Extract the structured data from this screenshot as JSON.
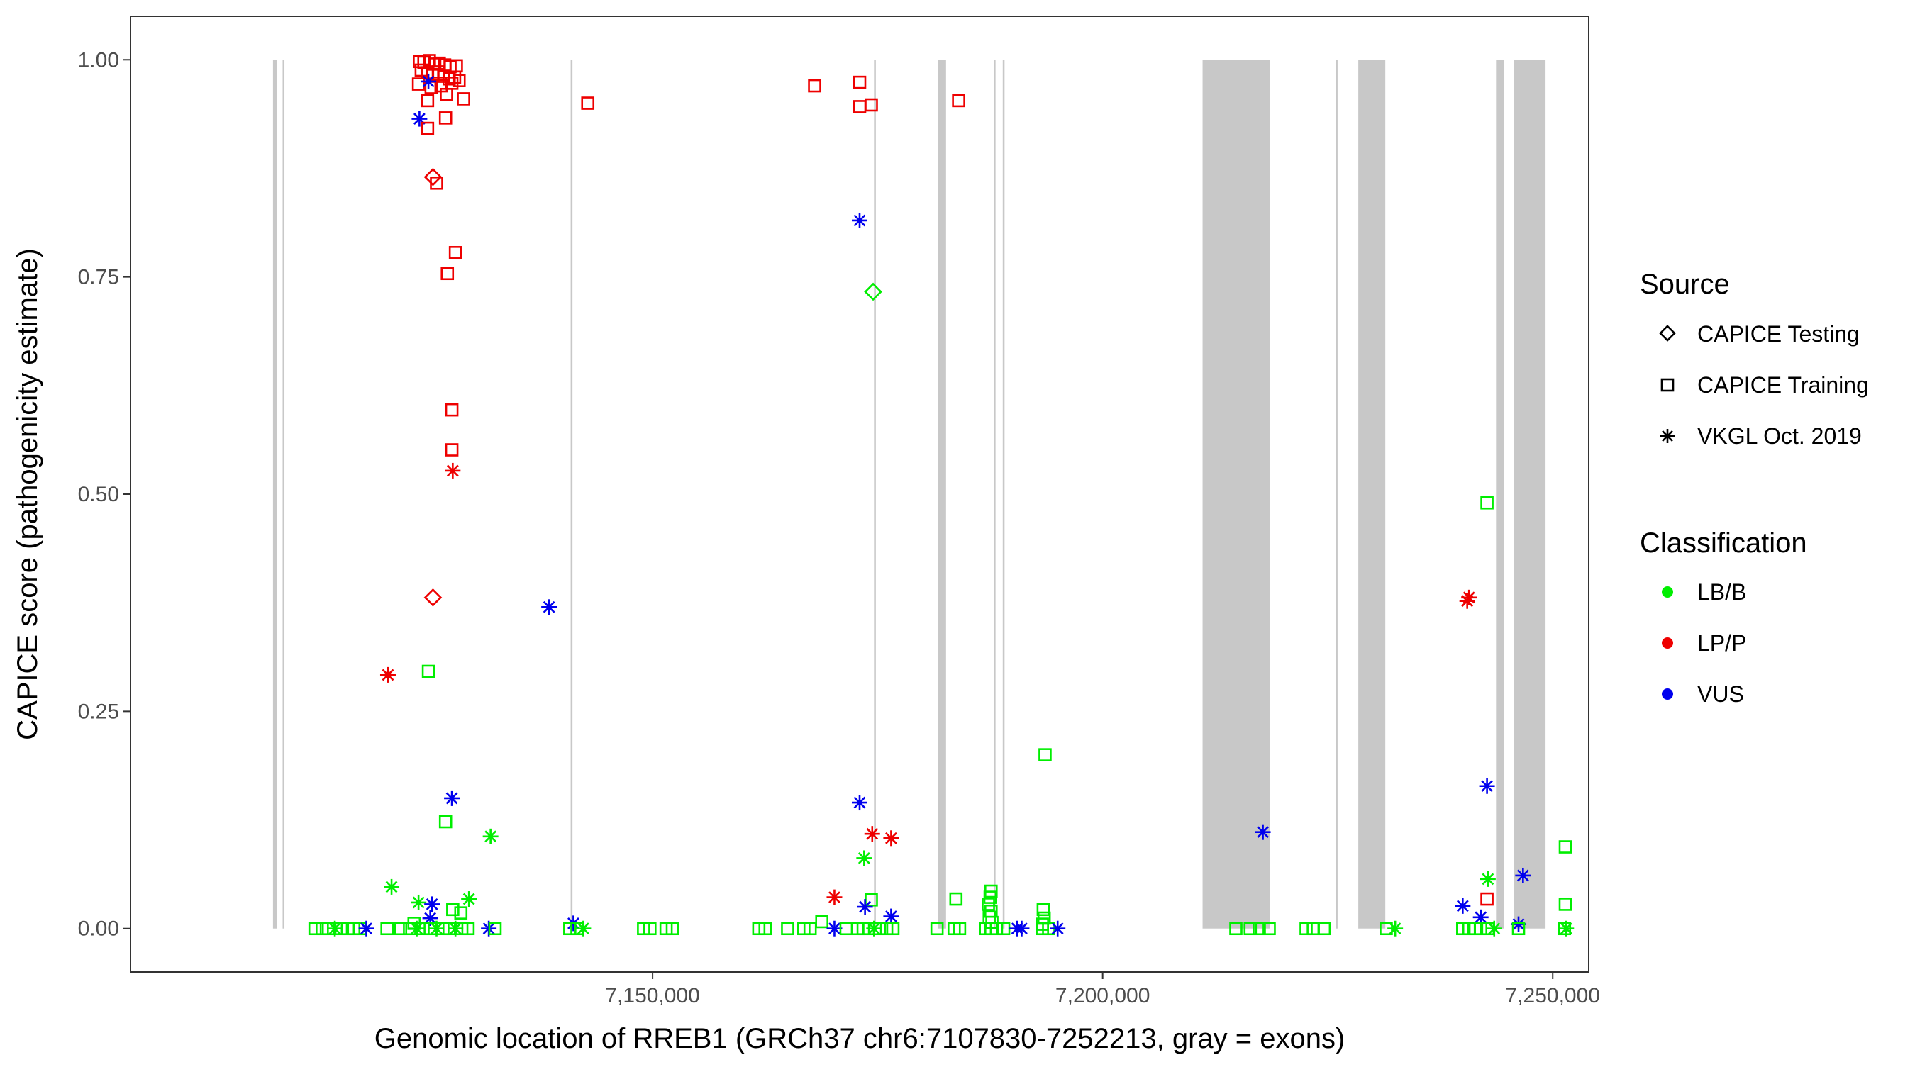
{
  "chart_data": {
    "type": "scatter",
    "xlabel": "Genomic location of RREB1 (GRCh37 chr6:7107830-7252213, gray = exons)",
    "ylabel": "CAPICE score (pathogenicity estimate)",
    "xlim": [
      7092000,
      7254000
    ],
    "ylim": [
      -0.05,
      1.05
    ],
    "x_ticks": [
      7150000,
      7200000,
      7250000
    ],
    "x_tick_labels": [
      "7,150,000",
      "7,200,000",
      "7,250,000"
    ],
    "y_ticks": [
      0,
      0.25,
      0.5,
      0.75,
      1.0
    ],
    "y_tick_labels": [
      "0.00",
      "0.25",
      "0.50",
      "0.75",
      "1.00"
    ],
    "grid": false,
    "legend_placement": "right",
    "exons": [
      [
        7107830,
        7108300
      ],
      [
        7108900,
        7109100
      ],
      [
        7140900,
        7141100
      ],
      [
        7174600,
        7174800
      ],
      [
        7181700,
        7182600
      ],
      [
        7187900,
        7188100
      ],
      [
        7188900,
        7189100
      ],
      [
        7211100,
        7218600
      ],
      [
        7225900,
        7226100
      ],
      [
        7228400,
        7231400
      ],
      [
        7243700,
        7244600
      ],
      [
        7245700,
        7249200
      ]
    ],
    "legend": {
      "source_title": "Source",
      "source_entries": [
        {
          "label": "CAPICE Testing",
          "shape": "diamond"
        },
        {
          "label": "CAPICE Training",
          "shape": "square"
        },
        {
          "label": "VKGL Oct. 2019",
          "shape": "asterisk"
        }
      ],
      "class_title": "Classification",
      "class_entries": [
        {
          "label": "LB/B",
          "color": "#00ee00"
        },
        {
          "label": "LP/P",
          "color": "#ee0000"
        },
        {
          "label": "VUS",
          "color": "#0000ee"
        }
      ]
    },
    "colors": {
      "LB/B": "#00ee00",
      "LP/P": "#ee0000",
      "VUS": "#0000ee",
      "exon": "#c8c8c8"
    },
    "points": [
      {
        "x": 7124100,
        "y": 0.998,
        "shape": "square",
        "class": "LP/P"
      },
      {
        "x": 7124600,
        "y": 0.997,
        "shape": "square",
        "class": "LP/P"
      },
      {
        "x": 7125200,
        "y": 0.999,
        "shape": "square",
        "class": "LP/P"
      },
      {
        "x": 7125800,
        "y": 0.995,
        "shape": "square",
        "class": "LP/P"
      },
      {
        "x": 7126300,
        "y": 0.996,
        "shape": "square",
        "class": "LP/P"
      },
      {
        "x": 7126900,
        "y": 0.994,
        "shape": "square",
        "class": "LP/P"
      },
      {
        "x": 7127500,
        "y": 0.992,
        "shape": "square",
        "class": "LP/P"
      },
      {
        "x": 7128200,
        "y": 0.993,
        "shape": "square",
        "class": "LP/P"
      },
      {
        "x": 7124300,
        "y": 0.988,
        "shape": "square",
        "class": "LP/P"
      },
      {
        "x": 7125000,
        "y": 0.985,
        "shape": "square",
        "class": "LP/P"
      },
      {
        "x": 7125600,
        "y": 0.983,
        "shape": "square",
        "class": "LP/P"
      },
      {
        "x": 7126200,
        "y": 0.986,
        "shape": "square",
        "class": "LP/P"
      },
      {
        "x": 7126800,
        "y": 0.981,
        "shape": "square",
        "class": "LP/P"
      },
      {
        "x": 7127400,
        "y": 0.978,
        "shape": "square",
        "class": "LP/P"
      },
      {
        "x": 7128000,
        "y": 0.98,
        "shape": "square",
        "class": "LP/P"
      },
      {
        "x": 7128500,
        "y": 0.976,
        "shape": "square",
        "class": "LP/P"
      },
      {
        "x": 7124000,
        "y": 0.972,
        "shape": "square",
        "class": "LP/P"
      },
      {
        "x": 7125400,
        "y": 0.968,
        "shape": "square",
        "class": "LP/P"
      },
      {
        "x": 7126500,
        "y": 0.97,
        "shape": "square",
        "class": "LP/P"
      },
      {
        "x": 7127700,
        "y": 0.973,
        "shape": "square",
        "class": "LP/P"
      },
      {
        "x": 7125100,
        "y": 0.975,
        "shape": "asterisk",
        "class": "VUS"
      },
      {
        "x": 7125000,
        "y": 0.953,
        "shape": "square",
        "class": "LP/P"
      },
      {
        "x": 7127100,
        "y": 0.96,
        "shape": "square",
        "class": "LP/P"
      },
      {
        "x": 7129000,
        "y": 0.955,
        "shape": "square",
        "class": "LP/P"
      },
      {
        "x": 7124100,
        "y": 0.932,
        "shape": "asterisk",
        "class": "VUS"
      },
      {
        "x": 7127000,
        "y": 0.933,
        "shape": "square",
        "class": "LP/P"
      },
      {
        "x": 7125000,
        "y": 0.921,
        "shape": "square",
        "class": "LP/P"
      },
      {
        "x": 7125600,
        "y": 0.865,
        "shape": "diamond",
        "class": "LP/P"
      },
      {
        "x": 7126000,
        "y": 0.858,
        "shape": "square",
        "class": "LP/P"
      },
      {
        "x": 7128100,
        "y": 0.778,
        "shape": "square",
        "class": "LP/P"
      },
      {
        "x": 7127200,
        "y": 0.754,
        "shape": "square",
        "class": "LP/P"
      },
      {
        "x": 7127700,
        "y": 0.597,
        "shape": "square",
        "class": "LP/P"
      },
      {
        "x": 7127700,
        "y": 0.551,
        "shape": "square",
        "class": "LP/P"
      },
      {
        "x": 7127800,
        "y": 0.527,
        "shape": "asterisk",
        "class": "LP/P"
      },
      {
        "x": 7125600,
        "y": 0.381,
        "shape": "diamond",
        "class": "LP/P"
      },
      {
        "x": 7138500,
        "y": 0.37,
        "shape": "asterisk",
        "class": "VUS"
      },
      {
        "x": 7120600,
        "y": 0.292,
        "shape": "asterisk",
        "class": "LP/P"
      },
      {
        "x": 7125100,
        "y": 0.296,
        "shape": "square",
        "class": "LB/B"
      },
      {
        "x": 7127700,
        "y": 0.15,
        "shape": "asterisk",
        "class": "VUS"
      },
      {
        "x": 7127000,
        "y": 0.123,
        "shape": "square",
        "class": "LB/B"
      },
      {
        "x": 7132000,
        "y": 0.106,
        "shape": "asterisk",
        "class": "LB/B"
      },
      {
        "x": 7121000,
        "y": 0.048,
        "shape": "asterisk",
        "class": "LB/B"
      },
      {
        "x": 7129600,
        "y": 0.034,
        "shape": "asterisk",
        "class": "LB/B"
      },
      {
        "x": 7124000,
        "y": 0.03,
        "shape": "asterisk",
        "class": "LB/B"
      },
      {
        "x": 7125500,
        "y": 0.028,
        "shape": "asterisk",
        "class": "VUS"
      },
      {
        "x": 7127800,
        "y": 0.022,
        "shape": "square",
        "class": "LB/B"
      },
      {
        "x": 7128700,
        "y": 0.018,
        "shape": "square",
        "class": "LB/B"
      },
      {
        "x": 7125300,
        "y": 0.012,
        "shape": "asterisk",
        "class": "VUS"
      },
      {
        "x": 7123500,
        "y": 0.006,
        "shape": "square",
        "class": "LB/B"
      },
      {
        "x": 7142800,
        "y": 0.95,
        "shape": "square",
        "class": "LP/P"
      },
      {
        "x": 7141200,
        "y": 0.006,
        "shape": "asterisk",
        "class": "VUS"
      },
      {
        "x": 7168000,
        "y": 0.97,
        "shape": "square",
        "class": "LP/P"
      },
      {
        "x": 7173000,
        "y": 0.974,
        "shape": "square",
        "class": "LP/P"
      },
      {
        "x": 7173000,
        "y": 0.946,
        "shape": "square",
        "class": "LP/P"
      },
      {
        "x": 7174300,
        "y": 0.948,
        "shape": "square",
        "class": "LP/P"
      },
      {
        "x": 7173000,
        "y": 0.815,
        "shape": "asterisk",
        "class": "VUS"
      },
      {
        "x": 7174500,
        "y": 0.733,
        "shape": "diamond",
        "class": "LB/B"
      },
      {
        "x": 7173000,
        "y": 0.145,
        "shape": "asterisk",
        "class": "VUS"
      },
      {
        "x": 7174400,
        "y": 0.109,
        "shape": "asterisk",
        "class": "LP/P"
      },
      {
        "x": 7176500,
        "y": 0.104,
        "shape": "asterisk",
        "class": "LP/P"
      },
      {
        "x": 7173500,
        "y": 0.081,
        "shape": "asterisk",
        "class": "LB/B"
      },
      {
        "x": 7170200,
        "y": 0.036,
        "shape": "asterisk",
        "class": "LP/P"
      },
      {
        "x": 7174300,
        "y": 0.033,
        "shape": "square",
        "class": "LB/B"
      },
      {
        "x": 7173600,
        "y": 0.025,
        "shape": "asterisk",
        "class": "VUS"
      },
      {
        "x": 7176500,
        "y": 0.014,
        "shape": "asterisk",
        "class": "VUS"
      },
      {
        "x": 7168800,
        "y": 0.008,
        "shape": "square",
        "class": "LB/B"
      },
      {
        "x": 7184000,
        "y": 0.953,
        "shape": "square",
        "class": "LP/P"
      },
      {
        "x": 7183700,
        "y": 0.034,
        "shape": "square",
        "class": "LB/B"
      },
      {
        "x": 7187600,
        "y": 0.043,
        "shape": "square",
        "class": "LB/B"
      },
      {
        "x": 7187500,
        "y": 0.036,
        "shape": "square",
        "class": "LB/B"
      },
      {
        "x": 7187300,
        "y": 0.028,
        "shape": "square",
        "class": "LB/B"
      },
      {
        "x": 7187600,
        "y": 0.02,
        "shape": "square",
        "class": "LB/B"
      },
      {
        "x": 7187400,
        "y": 0.013,
        "shape": "square",
        "class": "LB/B"
      },
      {
        "x": 7187700,
        "y": 0.007,
        "shape": "square",
        "class": "LB/B"
      },
      {
        "x": 7193600,
        "y": 0.2,
        "shape": "square",
        "class": "LB/B"
      },
      {
        "x": 7193400,
        "y": 0.022,
        "shape": "square",
        "class": "LB/B"
      },
      {
        "x": 7193500,
        "y": 0.012,
        "shape": "square",
        "class": "LB/B"
      },
      {
        "x": 7193300,
        "y": 0.005,
        "shape": "square",
        "class": "LB/B"
      },
      {
        "x": 7217800,
        "y": 0.111,
        "shape": "asterisk",
        "class": "VUS"
      },
      {
        "x": 7240500,
        "y": 0.377,
        "shape": "asterisk",
        "class": "LP/P"
      },
      {
        "x": 7240700,
        "y": 0.381,
        "shape": "asterisk",
        "class": "LP/P"
      },
      {
        "x": 7242700,
        "y": 0.49,
        "shape": "square",
        "class": "LB/B"
      },
      {
        "x": 7242700,
        "y": 0.164,
        "shape": "asterisk",
        "class": "VUS"
      },
      {
        "x": 7246700,
        "y": 0.061,
        "shape": "asterisk",
        "class": "VUS"
      },
      {
        "x": 7242800,
        "y": 0.057,
        "shape": "asterisk",
        "class": "LB/B"
      },
      {
        "x": 7242700,
        "y": 0.034,
        "shape": "square",
        "class": "LP/P"
      },
      {
        "x": 7240000,
        "y": 0.026,
        "shape": "asterisk",
        "class": "VUS"
      },
      {
        "x": 7242000,
        "y": 0.013,
        "shape": "asterisk",
        "class": "VUS"
      },
      {
        "x": 7246200,
        "y": 0.005,
        "shape": "asterisk",
        "class": "VUS"
      },
      {
        "x": 7251400,
        "y": 0.094,
        "shape": "square",
        "class": "LB/B"
      },
      {
        "x": 7251400,
        "y": 0.028,
        "shape": "square",
        "class": "LB/B"
      },
      {
        "x": 7112500,
        "y": 0,
        "shape": "square",
        "class": "LB/B"
      },
      {
        "x": 7113300,
        "y": 0,
        "shape": "square",
        "class": "LB/B"
      },
      {
        "x": 7114000,
        "y": 0,
        "shape": "square",
        "class": "LB/B"
      },
      {
        "x": 7114700,
        "y": 0,
        "shape": "asterisk",
        "class": "LB/B"
      },
      {
        "x": 7115400,
        "y": 0,
        "shape": "square",
        "class": "LB/B"
      },
      {
        "x": 7116100,
        "y": 0,
        "shape": "square",
        "class": "LB/B"
      },
      {
        "x": 7116800,
        "y": 0,
        "shape": "square",
        "class": "LB/B"
      },
      {
        "x": 7117500,
        "y": 0,
        "shape": "square",
        "class": "LB/B"
      },
      {
        "x": 7118200,
        "y": 0,
        "shape": "asterisk",
        "class": "VUS"
      },
      {
        "x": 7120500,
        "y": 0,
        "shape": "square",
        "class": "LB/B"
      },
      {
        "x": 7122000,
        "y": 0,
        "shape": "square",
        "class": "LB/B"
      },
      {
        "x": 7123000,
        "y": 0,
        "shape": "square",
        "class": "LB/B"
      },
      {
        "x": 7123800,
        "y": 0,
        "shape": "asterisk",
        "class": "LB/B"
      },
      {
        "x": 7124500,
        "y": 0,
        "shape": "square",
        "class": "LB/B"
      },
      {
        "x": 7125300,
        "y": 0,
        "shape": "square",
        "class": "LB/B"
      },
      {
        "x": 7126000,
        "y": 0,
        "shape": "asterisk",
        "class": "LB/B"
      },
      {
        "x": 7126700,
        "y": 0,
        "shape": "square",
        "class": "LB/B"
      },
      {
        "x": 7127400,
        "y": 0,
        "shape": "square",
        "class": "LB/B"
      },
      {
        "x": 7128100,
        "y": 0,
        "shape": "asterisk",
        "class": "LB/B"
      },
      {
        "x": 7128800,
        "y": 0,
        "shape": "square",
        "class": "LB/B"
      },
      {
        "x": 7129500,
        "y": 0,
        "shape": "square",
        "class": "LB/B"
      },
      {
        "x": 7131800,
        "y": 0,
        "shape": "asterisk",
        "class": "VUS"
      },
      {
        "x": 7132500,
        "y": 0,
        "shape": "square",
        "class": "LB/B"
      },
      {
        "x": 7140800,
        "y": 0,
        "shape": "square",
        "class": "LB/B"
      },
      {
        "x": 7141600,
        "y": 0,
        "shape": "square",
        "class": "LB/B"
      },
      {
        "x": 7142300,
        "y": 0,
        "shape": "asterisk",
        "class": "LB/B"
      },
      {
        "x": 7149000,
        "y": 0,
        "shape": "square",
        "class": "LB/B"
      },
      {
        "x": 7149700,
        "y": 0,
        "shape": "square",
        "class": "LB/B"
      },
      {
        "x": 7151500,
        "y": 0,
        "shape": "square",
        "class": "LB/B"
      },
      {
        "x": 7152200,
        "y": 0,
        "shape": "square",
        "class": "LB/B"
      },
      {
        "x": 7161800,
        "y": 0,
        "shape": "square",
        "class": "LB/B"
      },
      {
        "x": 7162500,
        "y": 0,
        "shape": "square",
        "class": "LB/B"
      },
      {
        "x": 7165000,
        "y": 0,
        "shape": "square",
        "class": "LB/B"
      },
      {
        "x": 7166800,
        "y": 0,
        "shape": "square",
        "class": "LB/B"
      },
      {
        "x": 7167500,
        "y": 0,
        "shape": "square",
        "class": "LB/B"
      },
      {
        "x": 7170200,
        "y": 0,
        "shape": "asterisk",
        "class": "VUS"
      },
      {
        "x": 7171500,
        "y": 0,
        "shape": "square",
        "class": "LB/B"
      },
      {
        "x": 7172800,
        "y": 0,
        "shape": "square",
        "class": "LB/B"
      },
      {
        "x": 7173400,
        "y": 0,
        "shape": "square",
        "class": "LB/B"
      },
      {
        "x": 7174000,
        "y": 0,
        "shape": "square",
        "class": "LB/B"
      },
      {
        "x": 7174600,
        "y": 0,
        "shape": "asterisk",
        "class": "LB/B"
      },
      {
        "x": 7175200,
        "y": 0,
        "shape": "square",
        "class": "LB/B"
      },
      {
        "x": 7176000,
        "y": 0,
        "shape": "square",
        "class": "LB/B"
      },
      {
        "x": 7176700,
        "y": 0,
        "shape": "square",
        "class": "LB/B"
      },
      {
        "x": 7181600,
        "y": 0,
        "shape": "square",
        "class": "LB/B"
      },
      {
        "x": 7183500,
        "y": 0,
        "shape": "square",
        "class": "LB/B"
      },
      {
        "x": 7184100,
        "y": 0,
        "shape": "square",
        "class": "LB/B"
      },
      {
        "x": 7187000,
        "y": 0,
        "shape": "square",
        "class": "LB/B"
      },
      {
        "x": 7187600,
        "y": 0,
        "shape": "square",
        "class": "LB/B"
      },
      {
        "x": 7188200,
        "y": 0,
        "shape": "square",
        "class": "LB/B"
      },
      {
        "x": 7189000,
        "y": 0,
        "shape": "square",
        "class": "LB/B"
      },
      {
        "x": 7190500,
        "y": 0,
        "shape": "asterisk",
        "class": "VUS"
      },
      {
        "x": 7191000,
        "y": 0,
        "shape": "asterisk",
        "class": "VUS"
      },
      {
        "x": 7193300,
        "y": 0,
        "shape": "square",
        "class": "LB/B"
      },
      {
        "x": 7194000,
        "y": 0,
        "shape": "square",
        "class": "LB/B"
      },
      {
        "x": 7195000,
        "y": 0,
        "shape": "asterisk",
        "class": "VUS"
      },
      {
        "x": 7214800,
        "y": 0,
        "shape": "square",
        "class": "LB/B"
      },
      {
        "x": 7216400,
        "y": 0,
        "shape": "square",
        "class": "LB/B"
      },
      {
        "x": 7217400,
        "y": 0,
        "shape": "square",
        "class": "LB/B"
      },
      {
        "x": 7218500,
        "y": 0,
        "shape": "square",
        "class": "LB/B"
      },
      {
        "x": 7222600,
        "y": 0,
        "shape": "square",
        "class": "LB/B"
      },
      {
        "x": 7223400,
        "y": 0,
        "shape": "square",
        "class": "LB/B"
      },
      {
        "x": 7224600,
        "y": 0,
        "shape": "square",
        "class": "LB/B"
      },
      {
        "x": 7231500,
        "y": 0,
        "shape": "square",
        "class": "LB/B"
      },
      {
        "x": 7232500,
        "y": 0,
        "shape": "asterisk",
        "class": "LB/B"
      },
      {
        "x": 7240000,
        "y": 0,
        "shape": "square",
        "class": "LB/B"
      },
      {
        "x": 7240700,
        "y": 0,
        "shape": "square",
        "class": "LB/B"
      },
      {
        "x": 7241400,
        "y": 0,
        "shape": "square",
        "class": "LB/B"
      },
      {
        "x": 7242000,
        "y": 0,
        "shape": "square",
        "class": "LB/B"
      },
      {
        "x": 7242800,
        "y": 0,
        "shape": "square",
        "class": "LB/B"
      },
      {
        "x": 7243500,
        "y": 0,
        "shape": "asterisk",
        "class": "LB/B"
      },
      {
        "x": 7246200,
        "y": 0,
        "shape": "square",
        "class": "LB/B"
      },
      {
        "x": 7251300,
        "y": 0,
        "shape": "square",
        "class": "LB/B"
      },
      {
        "x": 7251500,
        "y": 0,
        "shape": "asterisk",
        "class": "LB/B"
      }
    ]
  }
}
